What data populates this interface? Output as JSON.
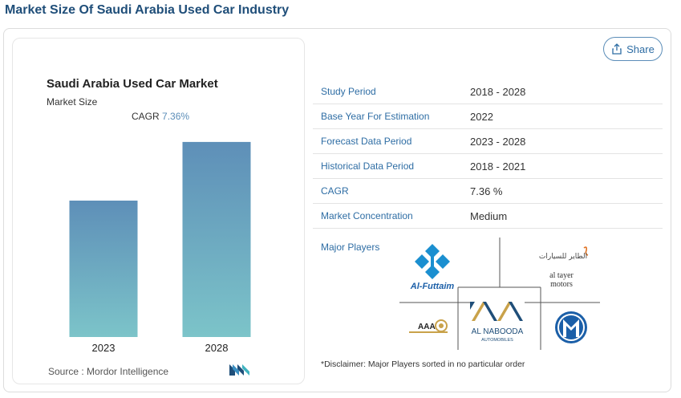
{
  "page": {
    "title": "Market Size Of Saudi Arabia Used Car Industry",
    "share_label": "Share"
  },
  "colors": {
    "title": "#1f4e79",
    "accent": "#2e6da4",
    "bar_top": "#5e8fb8",
    "bar_bottom": "#7cc4c9"
  },
  "chart_data": {
    "type": "bar",
    "title": "Saudi Arabia Used Car Market",
    "subtitle": "Market Size",
    "cagr_label": "CAGR",
    "cagr_value": "7.36%",
    "categories": [
      "2023",
      "2028"
    ],
    "values": [
      1.0,
      1.43
    ],
    "ylim": [
      0,
      1.6
    ],
    "grid": false,
    "source": "Source :  Mordor Intelligence"
  },
  "info_table": [
    {
      "key": "Study Period",
      "value": "2018 - 2028"
    },
    {
      "key": "Base Year For Estimation",
      "value": "2022"
    },
    {
      "key": "Forecast Data Period",
      "value": "2023 - 2028"
    },
    {
      "key": "Historical Data Period",
      "value": "2018 - 2021"
    },
    {
      "key": "CAGR",
      "value": "7.36 %"
    },
    {
      "key": "Market Concentration",
      "value": "Medium"
    }
  ],
  "major_players": {
    "label": "Major Players",
    "logos": {
      "al_futtaim": "Al-Futtaim",
      "al_tayer_ar": "الطاير للسيارات",
      "al_tayer_line1": "al tayer",
      "al_tayer_line2": "motors",
      "aaa": "AAA",
      "al_nabooda_line1": "AL NABOODA",
      "al_nabooda_line2": "AUTOMOBILES"
    }
  },
  "disclaimer": "*Disclaimer: Major Players sorted in no particular order"
}
